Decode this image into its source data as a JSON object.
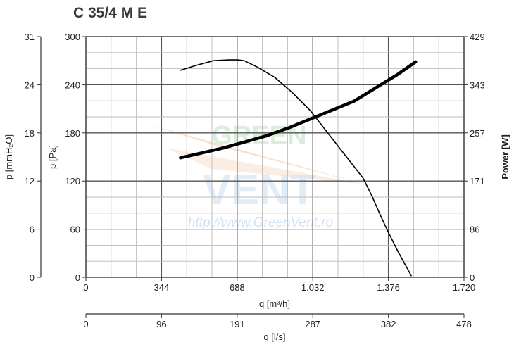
{
  "chart_data": {
    "type": "line",
    "title": "C 35/4 M E",
    "xlabel": "q [m³/h]",
    "x2label": "q [l/s]",
    "ylabel": "p [Pa]",
    "y2label": "p [mmH₂O]",
    "y3label": "Power [W]",
    "xlim": [
      0,
      1720
    ],
    "ylim": [
      0,
      300
    ],
    "x_ticks": [
      "0",
      "344",
      "688",
      "1.032",
      "1.376",
      "1.720"
    ],
    "x2_ticks": [
      "0",
      "96",
      "191",
      "287",
      "382",
      "478"
    ],
    "y_ticks": [
      "0",
      "60",
      "120",
      "180",
      "240",
      "300"
    ],
    "y2_ticks": [
      "0",
      "6",
      "12",
      "18",
      "24",
      "31"
    ],
    "y3_ticks": [
      "0",
      "86",
      "171",
      "257",
      "343",
      "429"
    ],
    "grid": true,
    "watermark": {
      "text_top": "GREEN",
      "text_mid": "VENT",
      "url": "http://www.GreenVent.ro"
    },
    "series": [
      {
        "name": "",
        "axis": "pressure_Pa",
        "x": [
          430,
          500,
          580,
          650,
          690,
          720,
          780,
          860,
          940,
          1020,
          1100,
          1180,
          1260,
          1300,
          1340,
          1376,
          1420,
          1480
        ],
        "y": [
          258,
          264,
          270,
          271,
          271,
          270,
          262,
          249,
          230,
          208,
          180,
          152,
          124,
          102,
          77,
          56,
          32,
          2
        ]
      },
      {
        "name": "",
        "axis": "power_W",
        "x": [
          430,
          520,
          620,
          720,
          820,
          920,
          1020,
          1120,
          1220,
          1320,
          1420,
          1500
        ],
        "y": [
          213,
          221,
          230,
          241,
          252,
          266,
          282,
          298,
          314,
          338,
          362,
          384
        ]
      }
    ]
  }
}
